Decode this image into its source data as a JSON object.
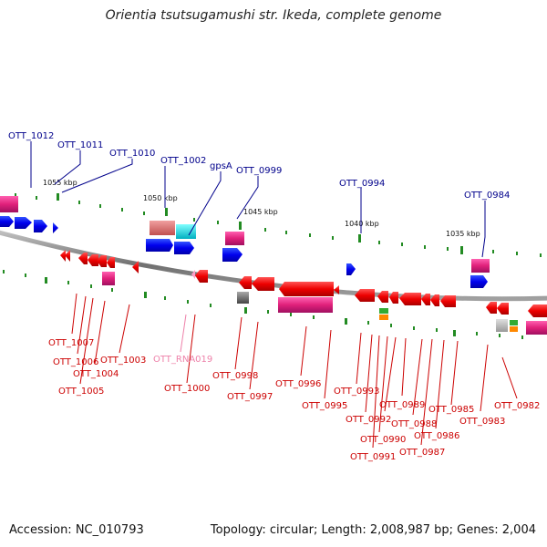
{
  "title": "Orientia tsutsugamushi str. Ikeda, complete genome",
  "footer": {
    "accession": "Accession: NC_010793",
    "topology": "Topology: circular; Length: 2,008,987 bp; Genes: 2,004"
  },
  "colors": {
    "backbone": "#808080",
    "forward_label": "#00008b",
    "reverse_label": "#cc0000",
    "rna_label": "#ee82aa",
    "tick": "#228b22",
    "cds_forward": "#0000ee",
    "cds_reverse": "#ee0000",
    "pseudo": "#e0207a",
    "rrna": "#e07070",
    "trna": "#00e0e0",
    "other_gray": "#666666",
    "light_gray": "#aaaaaa",
    "green": "#33aa33",
    "orange": "#ff8800"
  },
  "kbp_labels": [
    "1055 kbp",
    "1050 kbp",
    "1045 kbp",
    "1040 kbp",
    "1035 kbp"
  ],
  "forward_gene_labels": [
    "OTT_1012",
    "OTT_1011",
    "OTT_1010",
    "OTT_1002",
    "gpsA",
    "OTT_0999",
    "OTT_0994",
    "OTT_0984"
  ],
  "reverse_gene_labels": [
    "OTT_1007",
    "OTT_1006",
    "OTT_1005",
    "OTT_1004",
    "OTT_1003",
    "OTT_RNA019",
    "OTT_1000",
    "OTT_0998",
    "OTT_0997",
    "OTT_0996",
    "OTT_0995",
    "OTT_0993",
    "OTT_0992",
    "OTT_0991",
    "OTT_0990",
    "OTT_0989",
    "OTT_0988",
    "OTT_0987",
    "OTT_0986",
    "OTT_0985",
    "OTT_0983",
    "OTT_0982"
  ]
}
